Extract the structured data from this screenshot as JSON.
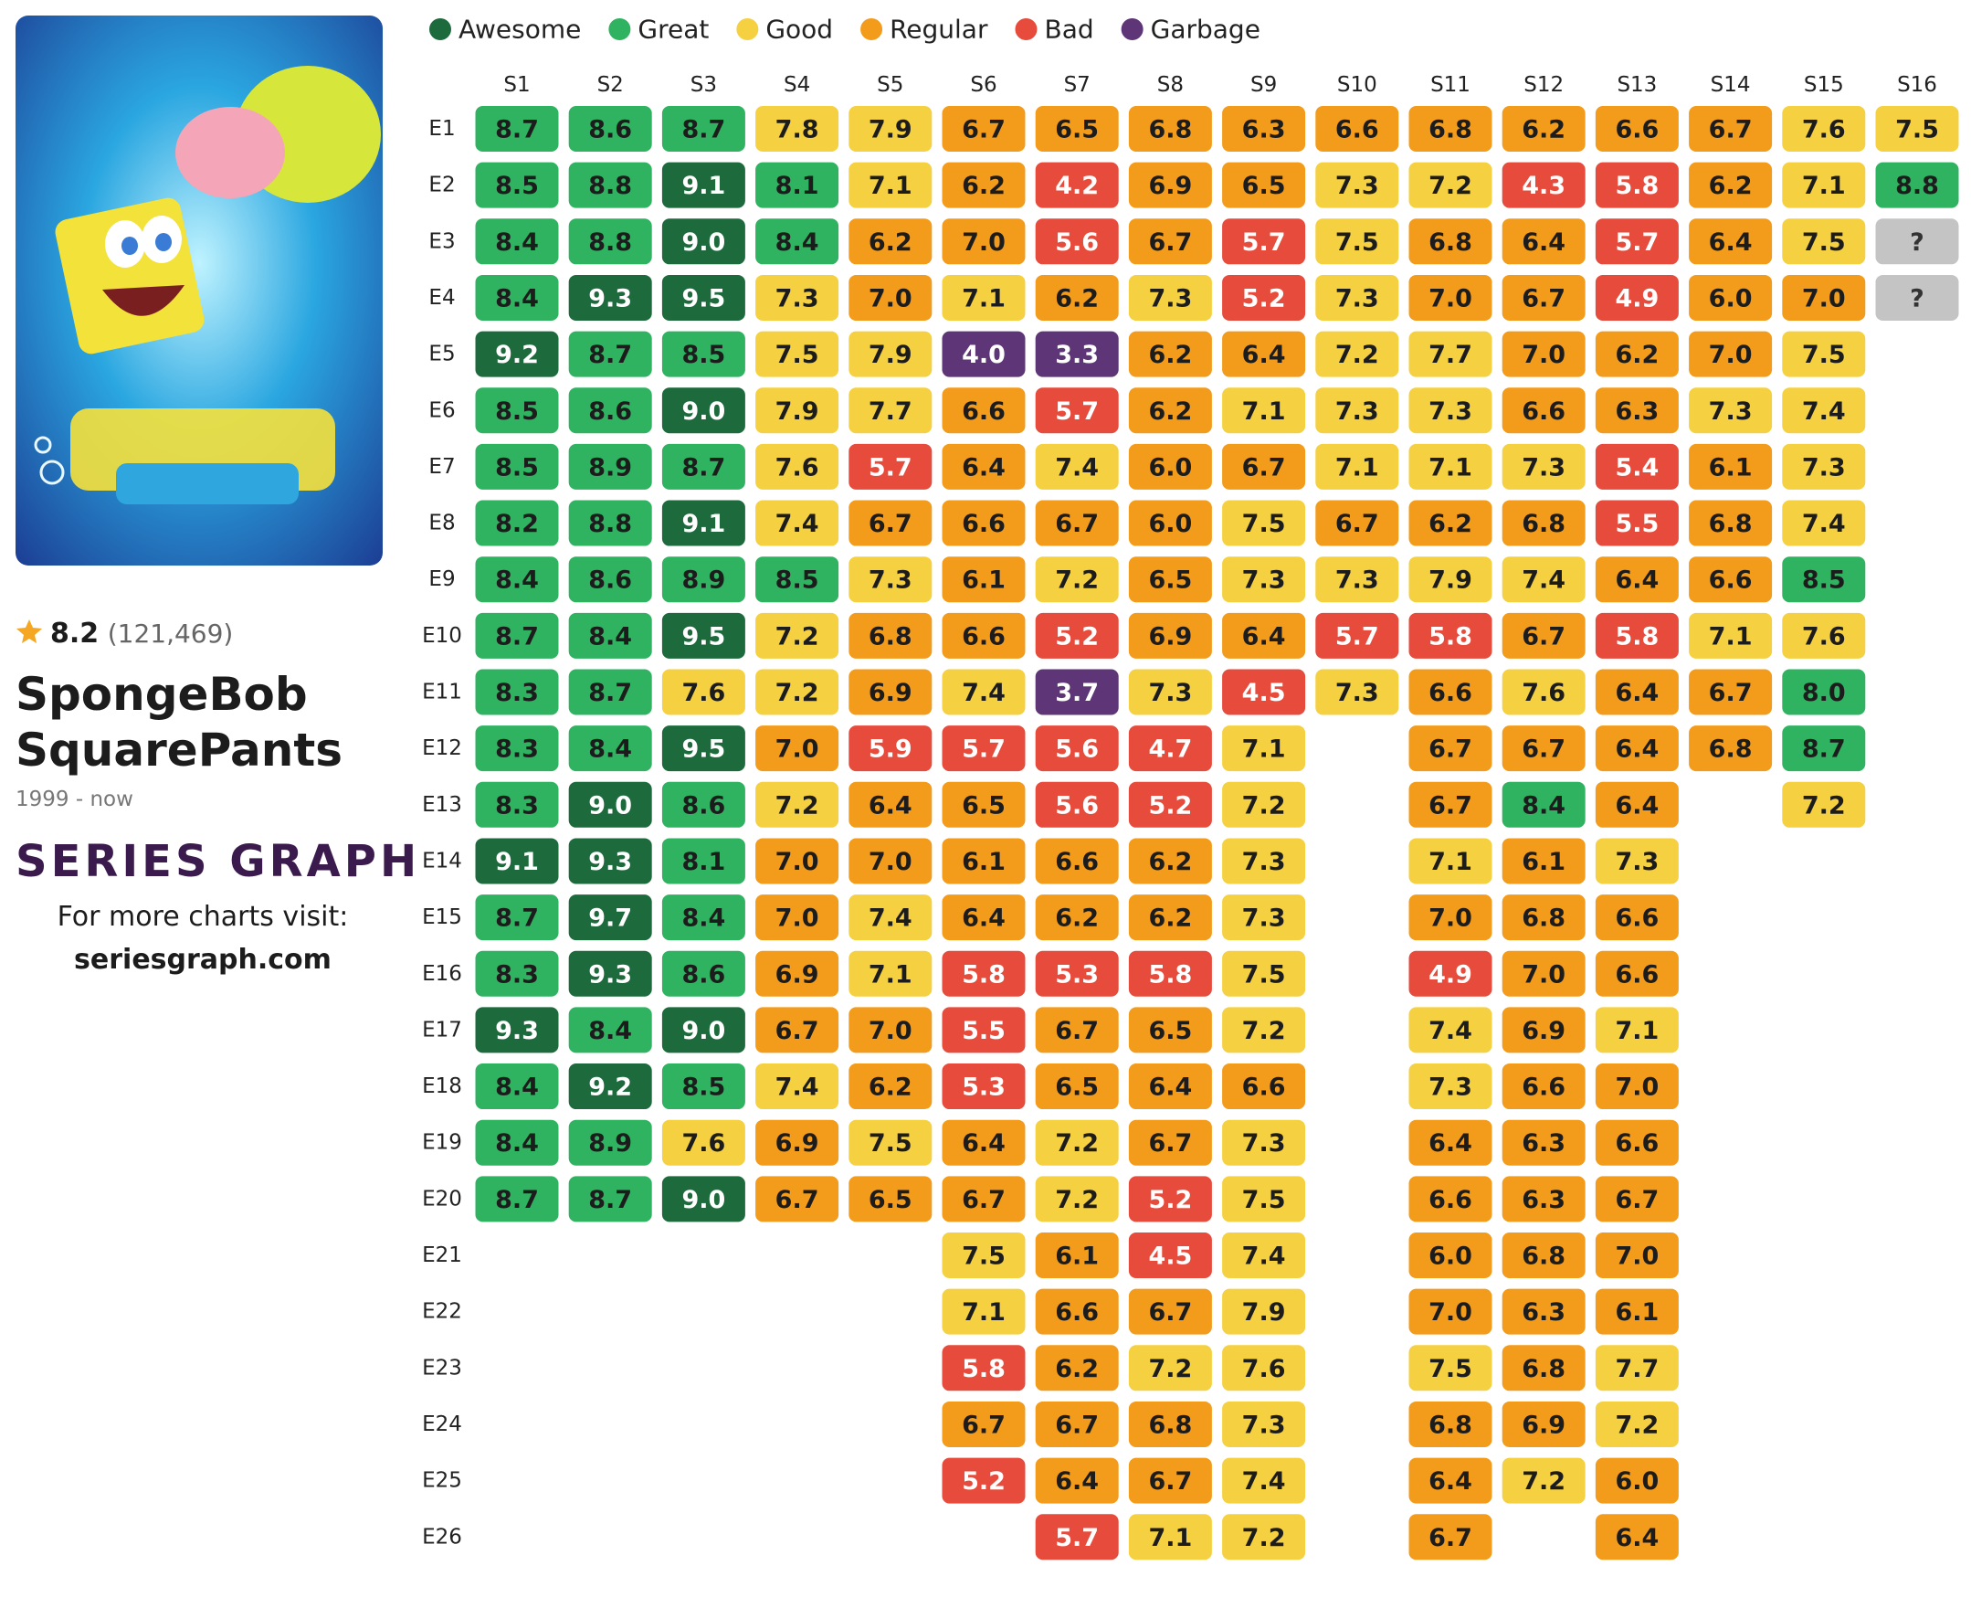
{
  "header": {
    "rating": 8.2,
    "votes": "(121,469)",
    "title": "SpongeBob SquarePants",
    "years": "1999 - now",
    "brand": "SERIES GRAPH",
    "promo": "For more charts visit:",
    "site": "seriesgraph.com"
  },
  "chart_data": {
    "type": "heatmap",
    "legend": [
      {
        "name": "Awesome",
        "color": "#1d6b3d",
        "text_color": "#ffffff",
        "min": 9.0
      },
      {
        "name": "Great",
        "color": "#2fb360",
        "text_color": "#1c1c1c",
        "min": 8.0
      },
      {
        "name": "Good",
        "color": "#f5d142",
        "text_color": "#1c1c1c",
        "min": 7.1
      },
      {
        "name": "Regular",
        "color": "#f39c1c",
        "text_color": "#1c1c1c",
        "min": 6.0
      },
      {
        "name": "Bad",
        "color": "#e64b3c",
        "text_color": "#ffffff",
        "min": 4.1
      },
      {
        "name": "Garbage",
        "color": "#5e3677",
        "text_color": "#ffffff",
        "min": 0
      }
    ],
    "missing_color": "#c4c4c4",
    "x": [
      "S1",
      "S2",
      "S3",
      "S4",
      "S5",
      "S6",
      "S7",
      "S8",
      "S9",
      "S10",
      "S11",
      "S12",
      "S13",
      "S14",
      "S15",
      "S16"
    ],
    "y": [
      "E1",
      "E2",
      "E3",
      "E4",
      "E5",
      "E6",
      "E7",
      "E8",
      "E9",
      "E10",
      "E11",
      "E12",
      "E13",
      "E14",
      "E15",
      "E16",
      "E17",
      "E18",
      "E19",
      "E20",
      "E21",
      "E22",
      "E23",
      "E24",
      "E25",
      "E26"
    ],
    "values": [
      [
        8.7,
        8.5,
        8.4,
        8.4,
        9.2,
        8.5,
        8.5,
        8.2,
        8.4,
        8.7,
        8.3,
        8.3,
        8.3,
        9.1,
        8.7,
        8.3,
        9.3,
        8.4,
        8.4,
        8.7,
        null,
        null,
        null,
        null,
        null,
        null
      ],
      [
        8.6,
        8.8,
        8.8,
        9.3,
        8.7,
        8.6,
        8.9,
        8.8,
        8.6,
        8.4,
        8.7,
        8.4,
        9.0,
        9.3,
        9.7,
        9.3,
        8.4,
        9.2,
        8.9,
        8.7,
        null,
        null,
        null,
        null,
        null,
        null
      ],
      [
        8.7,
        9.1,
        9.0,
        9.5,
        8.5,
        9.0,
        8.7,
        9.1,
        8.9,
        9.5,
        7.6,
        9.5,
        8.6,
        8.1,
        8.4,
        8.6,
        9.0,
        8.5,
        7.6,
        9.0,
        null,
        null,
        null,
        null,
        null,
        null
      ],
      [
        7.8,
        8.1,
        8.4,
        7.3,
        7.5,
        7.9,
        7.6,
        7.4,
        8.5,
        7.2,
        7.2,
        7.0,
        7.2,
        7.0,
        7.0,
        6.9,
        6.7,
        7.4,
        6.9,
        6.7,
        null,
        null,
        null,
        null,
        null,
        null
      ],
      [
        7.9,
        7.1,
        6.2,
        7.0,
        7.9,
        7.7,
        5.7,
        6.7,
        7.3,
        6.8,
        6.9,
        5.9,
        6.4,
        7.0,
        7.4,
        7.1,
        7.0,
        6.2,
        7.5,
        6.5,
        null,
        null,
        null,
        null,
        null,
        null
      ],
      [
        6.7,
        6.2,
        7.0,
        7.1,
        4.0,
        6.6,
        6.4,
        6.6,
        6.1,
        6.6,
        7.4,
        5.7,
        6.5,
        6.1,
        6.4,
        5.8,
        5.5,
        5.3,
        6.4,
        6.7,
        7.5,
        7.1,
        5.8,
        6.7,
        5.2,
        null
      ],
      [
        6.5,
        4.2,
        5.6,
        6.2,
        3.3,
        5.7,
        7.4,
        6.7,
        7.2,
        5.2,
        3.7,
        5.6,
        5.6,
        6.6,
        6.2,
        5.3,
        6.7,
        6.5,
        7.2,
        7.2,
        6.1,
        6.6,
        6.2,
        6.7,
        6.4,
        5.7
      ],
      [
        6.8,
        6.9,
        6.7,
        7.3,
        6.2,
        6.2,
        6.0,
        6.0,
        6.5,
        6.9,
        7.3,
        4.7,
        5.2,
        6.2,
        6.2,
        5.8,
        6.5,
        6.4,
        6.7,
        5.2,
        4.5,
        6.7,
        7.2,
        6.8,
        6.7,
        7.1
      ],
      [
        6.3,
        6.5,
        5.7,
        5.2,
        6.4,
        7.1,
        6.7,
        7.5,
        7.3,
        6.4,
        4.5,
        7.1,
        7.2,
        7.3,
        7.3,
        7.5,
        7.2,
        6.6,
        7.3,
        7.5,
        7.4,
        7.9,
        7.6,
        7.3,
        7.4,
        7.2
      ],
      [
        6.6,
        7.3,
        7.5,
        7.3,
        7.2,
        7.3,
        7.1,
        6.7,
        7.3,
        5.7,
        7.3,
        null,
        null,
        null,
        null,
        null,
        null,
        null,
        null,
        null,
        null,
        null,
        null,
        null,
        null,
        null
      ],
      [
        6.8,
        7.2,
        6.8,
        7.0,
        7.7,
        7.3,
        7.1,
        6.2,
        7.9,
        5.8,
        6.6,
        6.7,
        6.7,
        7.1,
        7.0,
        4.9,
        7.4,
        7.3,
        6.4,
        6.6,
        6.0,
        7.0,
        7.5,
        6.8,
        6.4,
        6.7
      ],
      [
        6.2,
        4.3,
        6.4,
        6.7,
        7.0,
        6.6,
        7.3,
        6.8,
        7.4,
        6.7,
        7.6,
        6.7,
        8.4,
        6.1,
        6.8,
        7.0,
        6.9,
        6.6,
        6.3,
        6.3,
        6.8,
        6.3,
        6.8,
        6.9,
        7.2,
        null
      ],
      [
        6.6,
        5.8,
        5.7,
        4.9,
        6.2,
        6.3,
        5.4,
        5.5,
        6.4,
        5.8,
        6.4,
        6.4,
        6.4,
        7.3,
        6.6,
        6.6,
        7.1,
        7.0,
        6.6,
        6.7,
        7.0,
        6.1,
        7.7,
        7.2,
        6.0,
        6.4
      ],
      [
        6.7,
        6.2,
        6.4,
        6.0,
        7.0,
        7.3,
        6.1,
        6.8,
        6.6,
        7.1,
        6.7,
        6.8,
        null,
        null,
        null,
        null,
        null,
        null,
        null,
        null,
        null,
        null,
        null,
        null,
        null,
        null
      ],
      [
        7.6,
        7.1,
        7.5,
        7.0,
        7.5,
        7.4,
        7.3,
        7.4,
        8.5,
        7.6,
        8.0,
        8.7,
        7.2,
        null,
        null,
        null,
        null,
        null,
        null,
        null,
        null,
        null,
        null,
        null,
        null,
        null
      ],
      [
        7.5,
        8.8,
        null,
        null,
        null,
        null,
        null,
        null,
        null,
        null,
        null,
        null,
        null,
        null,
        null,
        null,
        null,
        null,
        null,
        null,
        null,
        null,
        null,
        null,
        null,
        null
      ]
    ],
    "value_labels": [
      [
        "8.7",
        "8.5",
        "8.4",
        "8.4",
        "9.2",
        "8.5",
        "8.5",
        "8.2",
        "8.4",
        "8.7",
        "8.3",
        "8.3",
        "8.3",
        "9.1",
        "8.7",
        "8.3",
        "9.3",
        "8.4",
        "8.4",
        "8.7",
        null,
        null,
        null,
        null,
        null,
        null
      ],
      [
        "8.6",
        "8.8",
        "8.8",
        "9.3",
        "8.7",
        "8.6",
        "8.9",
        "8.8",
        "8.6",
        "8.4",
        "8.7",
        "8.4",
        "9.0",
        "9.3",
        "9.7",
        "9.3",
        "8.4",
        "9.2",
        "8.9",
        "8.7",
        null,
        null,
        null,
        null,
        null,
        null
      ],
      [
        "8.7",
        "9.1",
        "9.0",
        "9.5",
        "8.5",
        "9.0",
        "8.7",
        "9.1",
        "8.9",
        "9.5",
        "7.6",
        "9.5",
        "8.6",
        "8.1",
        "8.4",
        "8.6",
        "9.0",
        "8.5",
        "7.6",
        "9.0",
        null,
        null,
        null,
        null,
        null,
        null
      ],
      [
        "7.8",
        "8.1",
        "8.4",
        "7.3",
        "7.5",
        "7.9",
        "7.6",
        "7.4",
        "8.5",
        "7.2",
        "7.2",
        "7.0",
        "7.2",
        "7.0",
        "7.0",
        "6.9",
        "6.7",
        "7.4",
        "6.9",
        "6.7",
        null,
        null,
        null,
        null,
        null,
        null
      ],
      [
        "7.9",
        "7.1",
        "6.2",
        "7.0",
        "7.9",
        "7.7",
        "5.7",
        "6.7",
        "7.3",
        "6.8",
        "6.9",
        "5.9",
        "6.4",
        "7.0",
        "7.4",
        "7.1",
        "7.0",
        "6.2",
        "7.5",
        "6.5",
        null,
        null,
        null,
        null,
        null,
        null
      ],
      [
        "6.7",
        "6.2",
        "7.0",
        "7.1",
        "4.0",
        "6.6",
        "6.4",
        "6.6",
        "6.1",
        "6.6",
        "7.4",
        "5.7",
        "6.5",
        "6.1",
        "6.4",
        "5.8",
        "5.5",
        "5.3",
        "6.4",
        "6.7",
        "7.5",
        "7.1",
        "5.8",
        "6.7",
        "5.2",
        null
      ],
      [
        "6.5",
        "4.2",
        "5.6",
        "6.2",
        "3.3",
        "5.7",
        "7.4",
        "6.7",
        "7.2",
        "5.2",
        "3.7",
        "5.6",
        "5.6",
        "6.6",
        "6.2",
        "5.3",
        "6.7",
        "6.5",
        "7.2",
        "7.2",
        "6.1",
        "6.6",
        "6.2",
        "6.7",
        "6.4",
        "5.7"
      ],
      [
        "6.8",
        "6.9",
        "6.7",
        "7.3",
        "6.2",
        "6.2",
        "6.0",
        "6.0",
        "6.5",
        "6.9",
        "7.3",
        "4.7",
        "5.2",
        "6.2",
        "6.2",
        "5.8",
        "6.5",
        "6.4",
        "6.7",
        "5.2",
        "4.5",
        "6.7",
        "7.2",
        "6.8",
        "6.7",
        "7.1"
      ],
      [
        "6.3",
        "6.5",
        "5.7",
        "5.2",
        "6.4",
        "7.1",
        "6.7",
        "7.5",
        "7.3",
        "6.4",
        "4.5",
        "7.1",
        "7.2",
        "7.3",
        "7.3",
        "7.5",
        "7.2",
        "6.6",
        "7.3",
        "7.5",
        "7.4",
        "7.9",
        "7.6",
        "7.3",
        "7.4",
        "7.2"
      ],
      [
        "6.6",
        "7.3",
        "7.5",
        "7.3",
        "7.2",
        "7.3",
        "7.1",
        "6.7",
        "7.3",
        "5.7",
        "7.3",
        null,
        null,
        null,
        null,
        null,
        null,
        null,
        null,
        null,
        null,
        null,
        null,
        null,
        null,
        null
      ],
      [
        "6.8",
        "7.2",
        "6.8",
        "7.0",
        "7.7",
        "7.3",
        "7.1",
        "6.2",
        "7.9",
        "5.8",
        "6.6",
        "6.7",
        "6.7",
        "7.1",
        "7.0",
        "4.9",
        "7.4",
        "7.3",
        "6.4",
        "6.6",
        "6.0",
        "7.0",
        "7.5",
        "6.8",
        "6.4",
        "6.7"
      ],
      [
        "6.2",
        "4.3",
        "6.4",
        "6.7",
        "7.0",
        "6.6",
        "7.3",
        "6.8",
        "7.4",
        "6.7",
        "7.6",
        "6.7",
        "8.4",
        "6.1",
        "6.8",
        "7.0",
        "6.9",
        "6.6",
        "6.3",
        "6.3",
        "6.8",
        "6.3",
        "6.8",
        "6.9",
        "7.2",
        null
      ],
      [
        "6.6",
        "5.8",
        "5.7",
        "4.9",
        "6.2",
        "6.3",
        "5.4",
        "5.5",
        "6.4",
        "5.8",
        "6.4",
        "6.4",
        "6.4",
        "7.3",
        "6.6",
        "6.6",
        "7.1",
        "7.0",
        "6.6",
        "6.7",
        "7.0",
        "6.1",
        "7.7",
        "7.2",
        "6.0",
        "6.4"
      ],
      [
        "6.7",
        "6.2",
        "6.4",
        "6.0",
        "7.0",
        "7.3",
        "6.1",
        "6.8",
        "6.6",
        "7.1",
        "6.7",
        "6.8",
        null,
        null,
        null,
        null,
        null,
        null,
        null,
        null,
        null,
        null,
        null,
        null,
        null,
        null
      ],
      [
        "7.6",
        "7.1",
        "7.5",
        "7.0",
        "7.5",
        "7.4",
        "7.3",
        "7.4",
        "8.5",
        "7.6",
        "8.0",
        "8.7",
        "7.2",
        null,
        null,
        null,
        null,
        null,
        null,
        null,
        null,
        null,
        null,
        null,
        null,
        null
      ],
      [
        "7.5",
        "8.8",
        "?",
        "?",
        null,
        null,
        null,
        null,
        null,
        null,
        null,
        null,
        null,
        null,
        null,
        null,
        null,
        null,
        null,
        null,
        null,
        null,
        null,
        null,
        null,
        null
      ]
    ]
  }
}
